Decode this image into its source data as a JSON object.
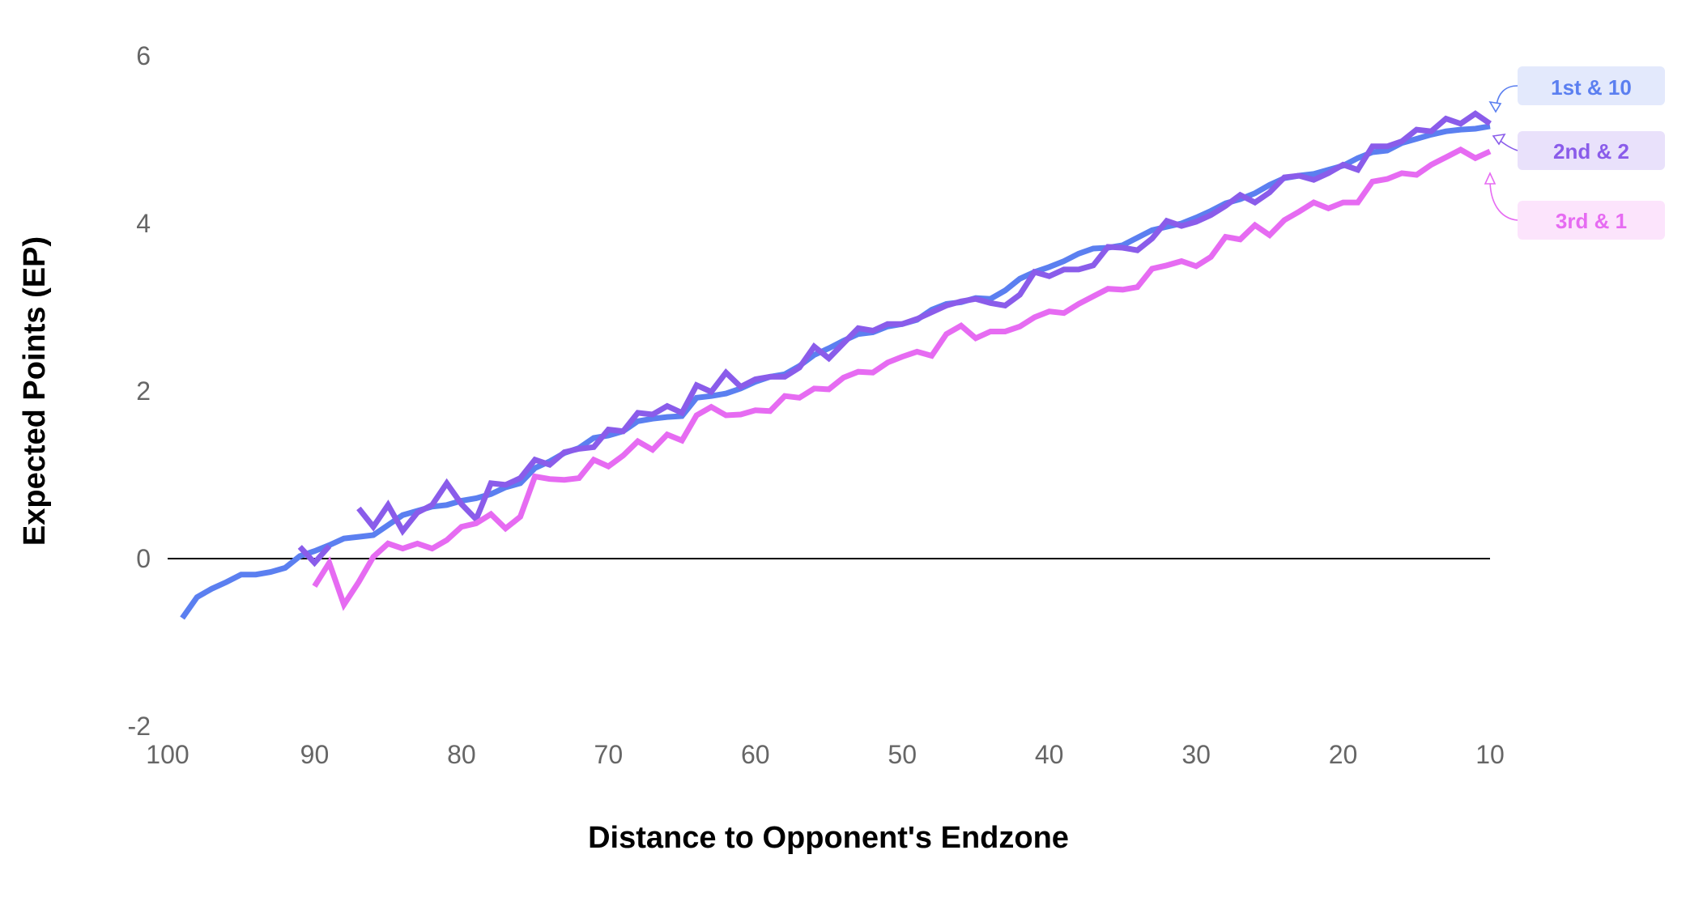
{
  "chart_data": {
    "type": "line",
    "title": "",
    "xlabel": "Distance to Opponent's Endzone",
    "ylabel": "Expected Points (EP)",
    "xlim": [
      100,
      10
    ],
    "ylim": [
      -2,
      6
    ],
    "x_ticks": [
      "100",
      "90",
      "80",
      "70",
      "60",
      "50",
      "40",
      "30",
      "20",
      "10"
    ],
    "y_ticks": [
      "-2",
      "0",
      "2",
      "4",
      "6"
    ],
    "grid": false,
    "zero_line": true,
    "legend_position": "right",
    "series": [
      {
        "name": "1st & 10",
        "color": "#5B7FF0",
        "legend_bg": "#E3E9FC",
        "x": [
          99,
          98,
          97,
          96,
          95,
          94,
          93,
          92,
          91,
          90,
          89,
          88,
          87,
          86,
          85,
          84,
          83,
          82,
          81,
          80,
          79,
          78,
          77,
          76,
          75,
          74,
          73,
          72,
          71,
          70,
          69,
          68,
          67,
          66,
          65,
          64,
          63,
          62,
          61,
          60,
          59,
          58,
          57,
          56,
          55,
          54,
          53,
          52,
          51,
          50,
          49,
          48,
          47,
          46,
          45,
          44,
          43,
          42,
          41,
          40,
          39,
          38,
          37,
          36,
          35,
          34,
          33,
          32,
          31,
          30,
          29,
          28,
          27,
          26,
          25,
          24,
          23,
          22,
          21,
          20,
          19,
          18,
          17,
          16,
          15,
          14,
          13,
          12,
          11,
          10
        ],
        "y": [
          -0.71,
          -0.46,
          -0.36,
          -0.28,
          -0.19,
          -0.19,
          -0.16,
          -0.11,
          0.03,
          0.09,
          0.16,
          0.24,
          0.26,
          0.28,
          0.4,
          0.52,
          0.57,
          0.62,
          0.64,
          0.69,
          0.72,
          0.77,
          0.85,
          0.9,
          1.08,
          1.16,
          1.26,
          1.32,
          1.44,
          1.47,
          1.52,
          1.64,
          1.67,
          1.69,
          1.7,
          1.92,
          1.94,
          1.97,
          2.03,
          2.11,
          2.17,
          2.2,
          2.3,
          2.43,
          2.51,
          2.6,
          2.68,
          2.7,
          2.77,
          2.8,
          2.85,
          2.97,
          3.04,
          3.06,
          3.11,
          3.1,
          3.2,
          3.34,
          3.42,
          3.48,
          3.55,
          3.64,
          3.7,
          3.71,
          3.74,
          3.83,
          3.92,
          3.96,
          4.0,
          4.07,
          4.15,
          4.24,
          4.29,
          4.36,
          4.46,
          4.54,
          4.57,
          4.59,
          4.64,
          4.69,
          4.78,
          4.85,
          4.87,
          4.96,
          5.01,
          5.06,
          5.1,
          5.12,
          5.13,
          5.16
        ]
      },
      {
        "name": "2nd & 2",
        "color": "#8A5CEA",
        "legend_bg": "#E9E1FB",
        "x": [
          91,
          90,
          89,
          88,
          87,
          86,
          85,
          84,
          83,
          82,
          81,
          80,
          79,
          78,
          77,
          76,
          75,
          74,
          73,
          72,
          71,
          70,
          69,
          68,
          67,
          66,
          65,
          64,
          63,
          62,
          61,
          60,
          59,
          58,
          57,
          56,
          55,
          54,
          53,
          52,
          51,
          50,
          49,
          48,
          47,
          46,
          45,
          44,
          43,
          42,
          41,
          40,
          39,
          38,
          37,
          36,
          35,
          34,
          33,
          32,
          31,
          30,
          29,
          28,
          27,
          26,
          25,
          24,
          23,
          22,
          21,
          20,
          19,
          18,
          17,
          16,
          15,
          14,
          13,
          12,
          11,
          10
        ],
        "y": [
          0.14,
          -0.05,
          0.15,
          null,
          0.6,
          0.38,
          0.64,
          0.33,
          0.55,
          0.64,
          0.9,
          0.65,
          0.47,
          0.9,
          0.88,
          0.96,
          1.18,
          1.12,
          1.27,
          1.31,
          1.33,
          1.54,
          1.52,
          1.74,
          1.72,
          1.82,
          1.74,
          2.07,
          1.99,
          2.22,
          2.05,
          2.14,
          2.17,
          2.17,
          2.28,
          2.53,
          2.39,
          2.57,
          2.75,
          2.72,
          2.8,
          2.8,
          2.86,
          2.94,
          3.02,
          3.07,
          3.1,
          3.05,
          3.02,
          3.15,
          3.42,
          3.37,
          3.45,
          3.45,
          3.5,
          3.72,
          3.71,
          3.68,
          3.82,
          4.03,
          3.97,
          4.02,
          4.1,
          4.21,
          4.34,
          4.25,
          4.37,
          4.55,
          4.57,
          4.52,
          4.6,
          4.7,
          4.64,
          4.92,
          4.92,
          4.98,
          5.12,
          5.1,
          5.25,
          5.19,
          5.31,
          5.19
        ]
      },
      {
        "name": "3rd & 1",
        "color": "#E66BF2",
        "legend_bg": "#FCE4FC",
        "x": [
          90,
          89,
          88,
          87,
          86,
          85,
          84,
          83,
          82,
          81,
          80,
          79,
          78,
          77,
          76,
          75,
          74,
          73,
          72,
          71,
          70,
          69,
          68,
          67,
          66,
          65,
          64,
          63,
          62,
          61,
          60,
          59,
          58,
          57,
          56,
          55,
          54,
          53,
          52,
          51,
          50,
          49,
          48,
          47,
          46,
          45,
          44,
          43,
          42,
          41,
          40,
          39,
          38,
          37,
          36,
          35,
          34,
          33,
          32,
          31,
          30,
          29,
          28,
          27,
          26,
          25,
          24,
          23,
          22,
          21,
          20,
          19,
          18,
          17,
          16,
          15,
          14,
          13,
          12,
          11,
          10
        ],
        "y": [
          -0.33,
          -0.05,
          -0.55,
          -0.28,
          0.02,
          0.18,
          0.12,
          0.18,
          0.12,
          0.22,
          0.38,
          0.42,
          0.53,
          0.36,
          0.5,
          0.98,
          0.95,
          0.94,
          0.96,
          1.18,
          1.1,
          1.23,
          1.4,
          1.3,
          1.48,
          1.41,
          1.71,
          1.81,
          1.71,
          1.72,
          1.77,
          1.76,
          1.94,
          1.92,
          2.03,
          2.02,
          2.16,
          2.23,
          2.22,
          2.34,
          2.41,
          2.47,
          2.42,
          2.68,
          2.78,
          2.63,
          2.71,
          2.71,
          2.77,
          2.88,
          2.95,
          2.93,
          3.04,
          3.13,
          3.22,
          3.21,
          3.24,
          3.46,
          3.5,
          3.55,
          3.49,
          3.6,
          3.84,
          3.81,
          3.98,
          3.86,
          4.04,
          4.14,
          4.25,
          4.18,
          4.25,
          4.25,
          4.5,
          4.53,
          4.6,
          4.58,
          4.7,
          4.79,
          4.88,
          4.78,
          4.86
        ]
      }
    ]
  }
}
